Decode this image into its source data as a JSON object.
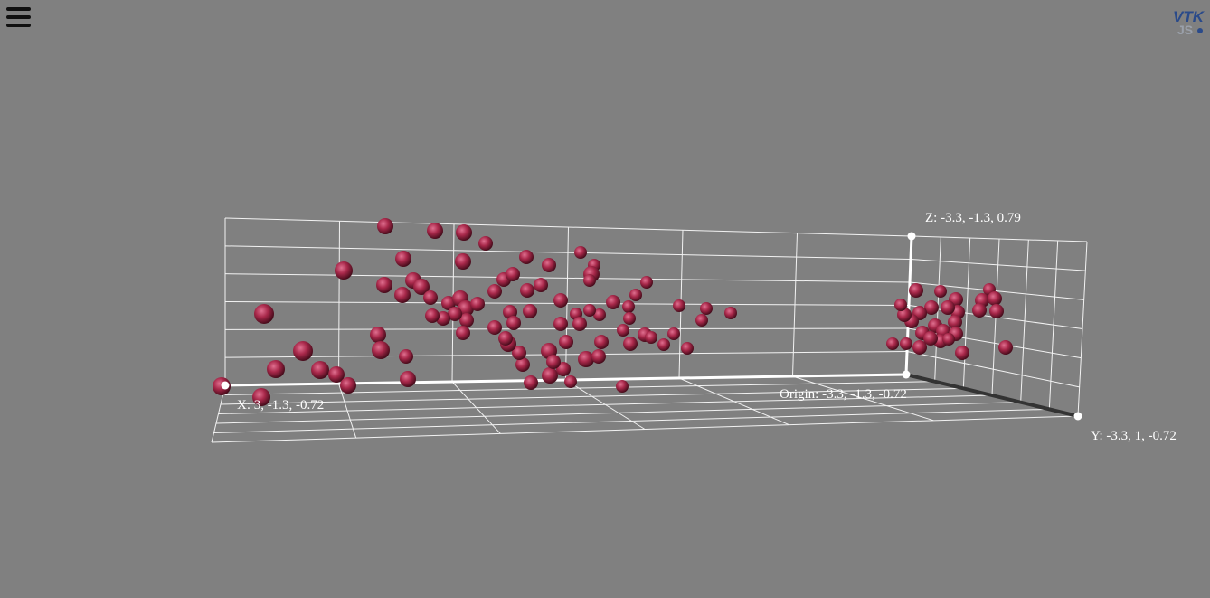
{
  "app": {
    "logo_text": "VTK",
    "logo_subtext": "JS"
  },
  "colors": {
    "background": "#808080",
    "sphere": "#a8284a",
    "grid": "#f0f0f0",
    "text": "#ffffff"
  },
  "icons": {
    "menu": "hamburger-menu-icon",
    "logo": "vtk-js-logo"
  },
  "axes_labels": {
    "x": "X: 3, -1.3, -0.72",
    "y": "Y: -3.3, 1, -0.72",
    "z": "Z: -3.3, -1.3, 0.79",
    "origin": "Origin: -3.3, -1.3, -0.72"
  }
}
